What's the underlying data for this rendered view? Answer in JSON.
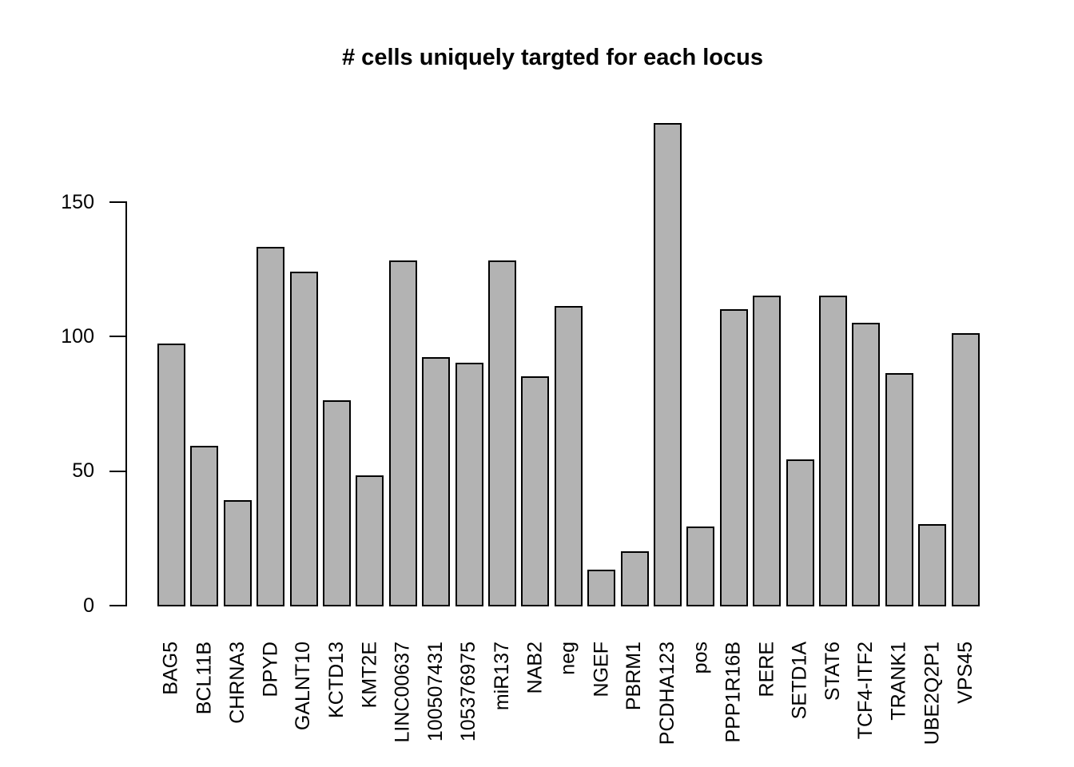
{
  "chart_data": {
    "type": "bar",
    "title": "# cells uniquely targted for each locus",
    "categories": [
      "BAG5",
      "BCL11B",
      "CHRNA3",
      "DPYD",
      "GALNT10",
      "KCTD13",
      "KMT2E",
      "LINC00637",
      "100507431",
      "105376975",
      "miR137",
      "NAB2",
      "neg",
      "NGEF",
      "PBRM1",
      "PCDHA123",
      "pos",
      "PPP1R16B",
      "RERE",
      "SETD1A",
      "STAT6",
      "TCF4-ITF2",
      "TRANK1",
      "UBE2Q2P1",
      "VPS45"
    ],
    "values": [
      97,
      59,
      39,
      133,
      124,
      76,
      48,
      128,
      92,
      90,
      128,
      85,
      111,
      13,
      20,
      179,
      29,
      110,
      115,
      54,
      115,
      105,
      86,
      30,
      101
    ],
    "xlabel": "",
    "ylabel": "",
    "yticks": [
      0,
      50,
      100,
      150
    ],
    "ylim": [
      0,
      185
    ],
    "grid": false,
    "legend": null,
    "colors": {
      "bar_fill": "#B3B3B3",
      "bar_border": "#000000",
      "text": "#000000",
      "background": "#FFFFFF"
    }
  }
}
